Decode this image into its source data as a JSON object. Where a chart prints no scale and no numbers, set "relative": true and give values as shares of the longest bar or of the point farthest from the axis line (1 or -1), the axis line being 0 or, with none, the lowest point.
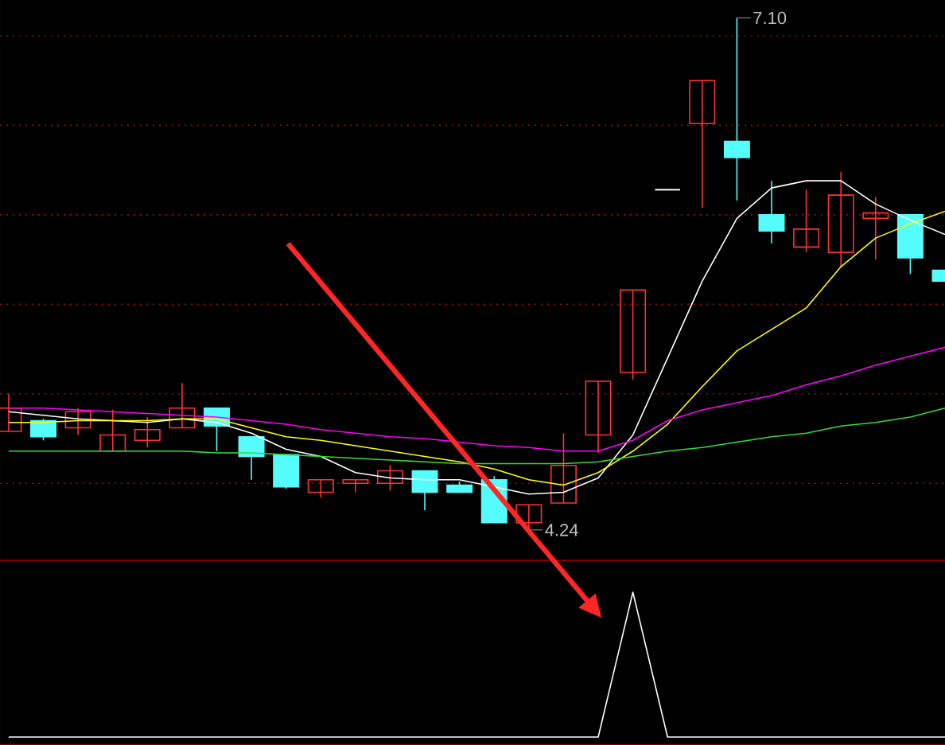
{
  "chart_data": [
    {
      "type": "candlestick",
      "categories": [
        null,
        null,
        null,
        null,
        null,
        null,
        null,
        null,
        null,
        null,
        null,
        null,
        null,
        null,
        null,
        null,
        null,
        null,
        null,
        null,
        null,
        null,
        null,
        null,
        null,
        null,
        null,
        null
      ],
      "ohlc": [
        [
          4.79,
          5.0,
          4.79,
          4.92
        ],
        [
          4.85,
          4.86,
          4.74,
          4.76
        ],
        [
          4.81,
          4.92,
          4.77,
          4.9
        ],
        [
          4.68,
          4.91,
          4.68,
          4.77
        ],
        [
          4.74,
          4.87,
          4.7,
          4.8
        ],
        [
          4.81,
          5.06,
          4.81,
          4.92
        ],
        [
          4.92,
          4.92,
          4.68,
          4.82
        ],
        [
          4.76,
          4.76,
          4.52,
          4.65
        ],
        [
          4.66,
          4.66,
          4.47,
          4.48
        ],
        [
          4.45,
          4.52,
          4.42,
          4.52
        ],
        [
          4.5,
          4.52,
          4.45,
          4.52
        ],
        [
          4.5,
          4.6,
          4.46,
          4.57
        ],
        [
          4.57,
          4.57,
          4.35,
          4.45
        ],
        [
          4.49,
          4.51,
          4.45,
          4.45
        ],
        [
          4.52,
          4.54,
          4.28,
          4.28
        ],
        [
          4.28,
          4.38,
          4.24,
          4.38
        ],
        [
          4.39,
          4.78,
          4.39,
          4.6
        ],
        [
          4.77,
          5.07,
          4.67,
          5.07
        ],
        [
          5.12,
          5.58,
          5.08,
          5.58
        ],
        [
          6.14,
          6.14,
          6.14,
          6.14
        ],
        [
          6.51,
          6.75,
          6.04,
          6.75
        ],
        [
          6.41,
          7.1,
          6.08,
          6.32
        ],
        [
          6.0,
          6.19,
          5.84,
          5.91
        ],
        [
          5.82,
          6.14,
          5.79,
          5.92
        ],
        [
          5.79,
          6.24,
          5.71,
          6.11
        ],
        [
          5.98,
          6.1,
          5.75,
          6.01
        ],
        [
          6.0,
          6.0,
          5.67,
          5.76
        ],
        [
          5.69,
          5.69,
          5.63,
          5.63
        ]
      ],
      "colors": [
        "#ff3232",
        "#54fcfc",
        "#ff3232",
        "#ff3232",
        "#ff3232",
        "#ff3232",
        "#54fcfc",
        "#54fcfc",
        "#54fcfc",
        "#ff3232",
        "#ff3232",
        "#ff3232",
        "#54fcfc",
        "#54fcfc",
        "#54fcfc",
        "#ff3232",
        "#ff3232",
        "#ff3232",
        "#ff3232",
        "#ffffff",
        "#ff3232",
        "#54fcfc",
        "#54fcfc",
        "#ff3232",
        "#ff3232",
        "#ff3232",
        "#54fcfc",
        "#54fcfc"
      ],
      "series": [
        {
          "type": "line",
          "color": "#ffffff",
          "values": [
            4.9,
            4.88,
            4.86,
            4.85,
            4.84,
            4.86,
            4.84,
            4.78,
            4.69,
            4.65,
            4.56,
            4.53,
            4.52,
            4.52,
            null,
            4.44,
            4.45,
            4.53,
            4.77,
            5.2,
            5.63,
            5.98,
            6.15,
            6.19,
            6.19,
            6.06,
            5.97,
            5.89
          ]
        },
        {
          "type": "line",
          "color": "#ffff00",
          "values": [
            4.84,
            4.84,
            4.85,
            4.85,
            4.85,
            4.86,
            4.86,
            4.81,
            4.76,
            4.74,
            4.71,
            4.68,
            4.65,
            4.62,
            4.58,
            4.52,
            4.49,
            4.56,
            4.68,
            4.83,
            5.04,
            5.24,
            5.36,
            5.48,
            5.71,
            5.87,
            5.95,
            6.02
          ]
        },
        {
          "type": "line",
          "color": "#ff00ff",
          "values": [
            4.92,
            4.92,
            4.91,
            4.9,
            4.89,
            4.88,
            4.87,
            4.85,
            4.83,
            4.8,
            4.78,
            4.76,
            4.75,
            4.73,
            4.71,
            4.7,
            4.68,
            4.68,
            4.74,
            4.85,
            4.91,
            4.95,
            4.99,
            5.05,
            5.1,
            5.16,
            5.21,
            5.26
          ]
        },
        {
          "type": "line",
          "color": "#33dd33",
          "values": [
            4.68,
            4.68,
            4.68,
            4.68,
            4.68,
            4.68,
            4.67,
            4.67,
            4.66,
            4.65,
            4.64,
            4.63,
            4.62,
            4.61,
            4.61,
            4.61,
            4.61,
            4.62,
            4.65,
            4.68,
            4.7,
            4.73,
            4.76,
            4.78,
            4.82,
            4.84,
            4.87,
            4.92
          ]
        }
      ],
      "ylim": [
        4.07,
        7.2
      ],
      "yticks": [
        {
          "value": 4.5,
          "label": null
        },
        {
          "value": 5.0,
          "label": null
        },
        {
          "value": 5.5,
          "label": null
        },
        {
          "value": 6.0,
          "label": null
        },
        {
          "value": 6.5,
          "label": null
        },
        {
          "value": 7.0,
          "label": null
        }
      ],
      "grid": "y",
      "annotations": [
        "7.10",
        "4.24"
      ]
    },
    {
      "type": "line",
      "categories": [
        null,
        null,
        null,
        null,
        null,
        null,
        null,
        null,
        null,
        null,
        null,
        null,
        null,
        null,
        null,
        null,
        null,
        null,
        null,
        null,
        null,
        null,
        null,
        null,
        null,
        null,
        null,
        null
      ],
      "relative": true,
      "color": "#ffffff",
      "values": [
        0,
        0,
        0,
        0,
        0,
        0,
        0,
        0,
        0,
        0,
        0,
        0,
        0,
        0,
        0,
        0,
        0,
        0,
        1,
        0,
        0,
        0,
        0,
        0,
        0,
        0,
        0,
        0
      ]
    }
  ]
}
